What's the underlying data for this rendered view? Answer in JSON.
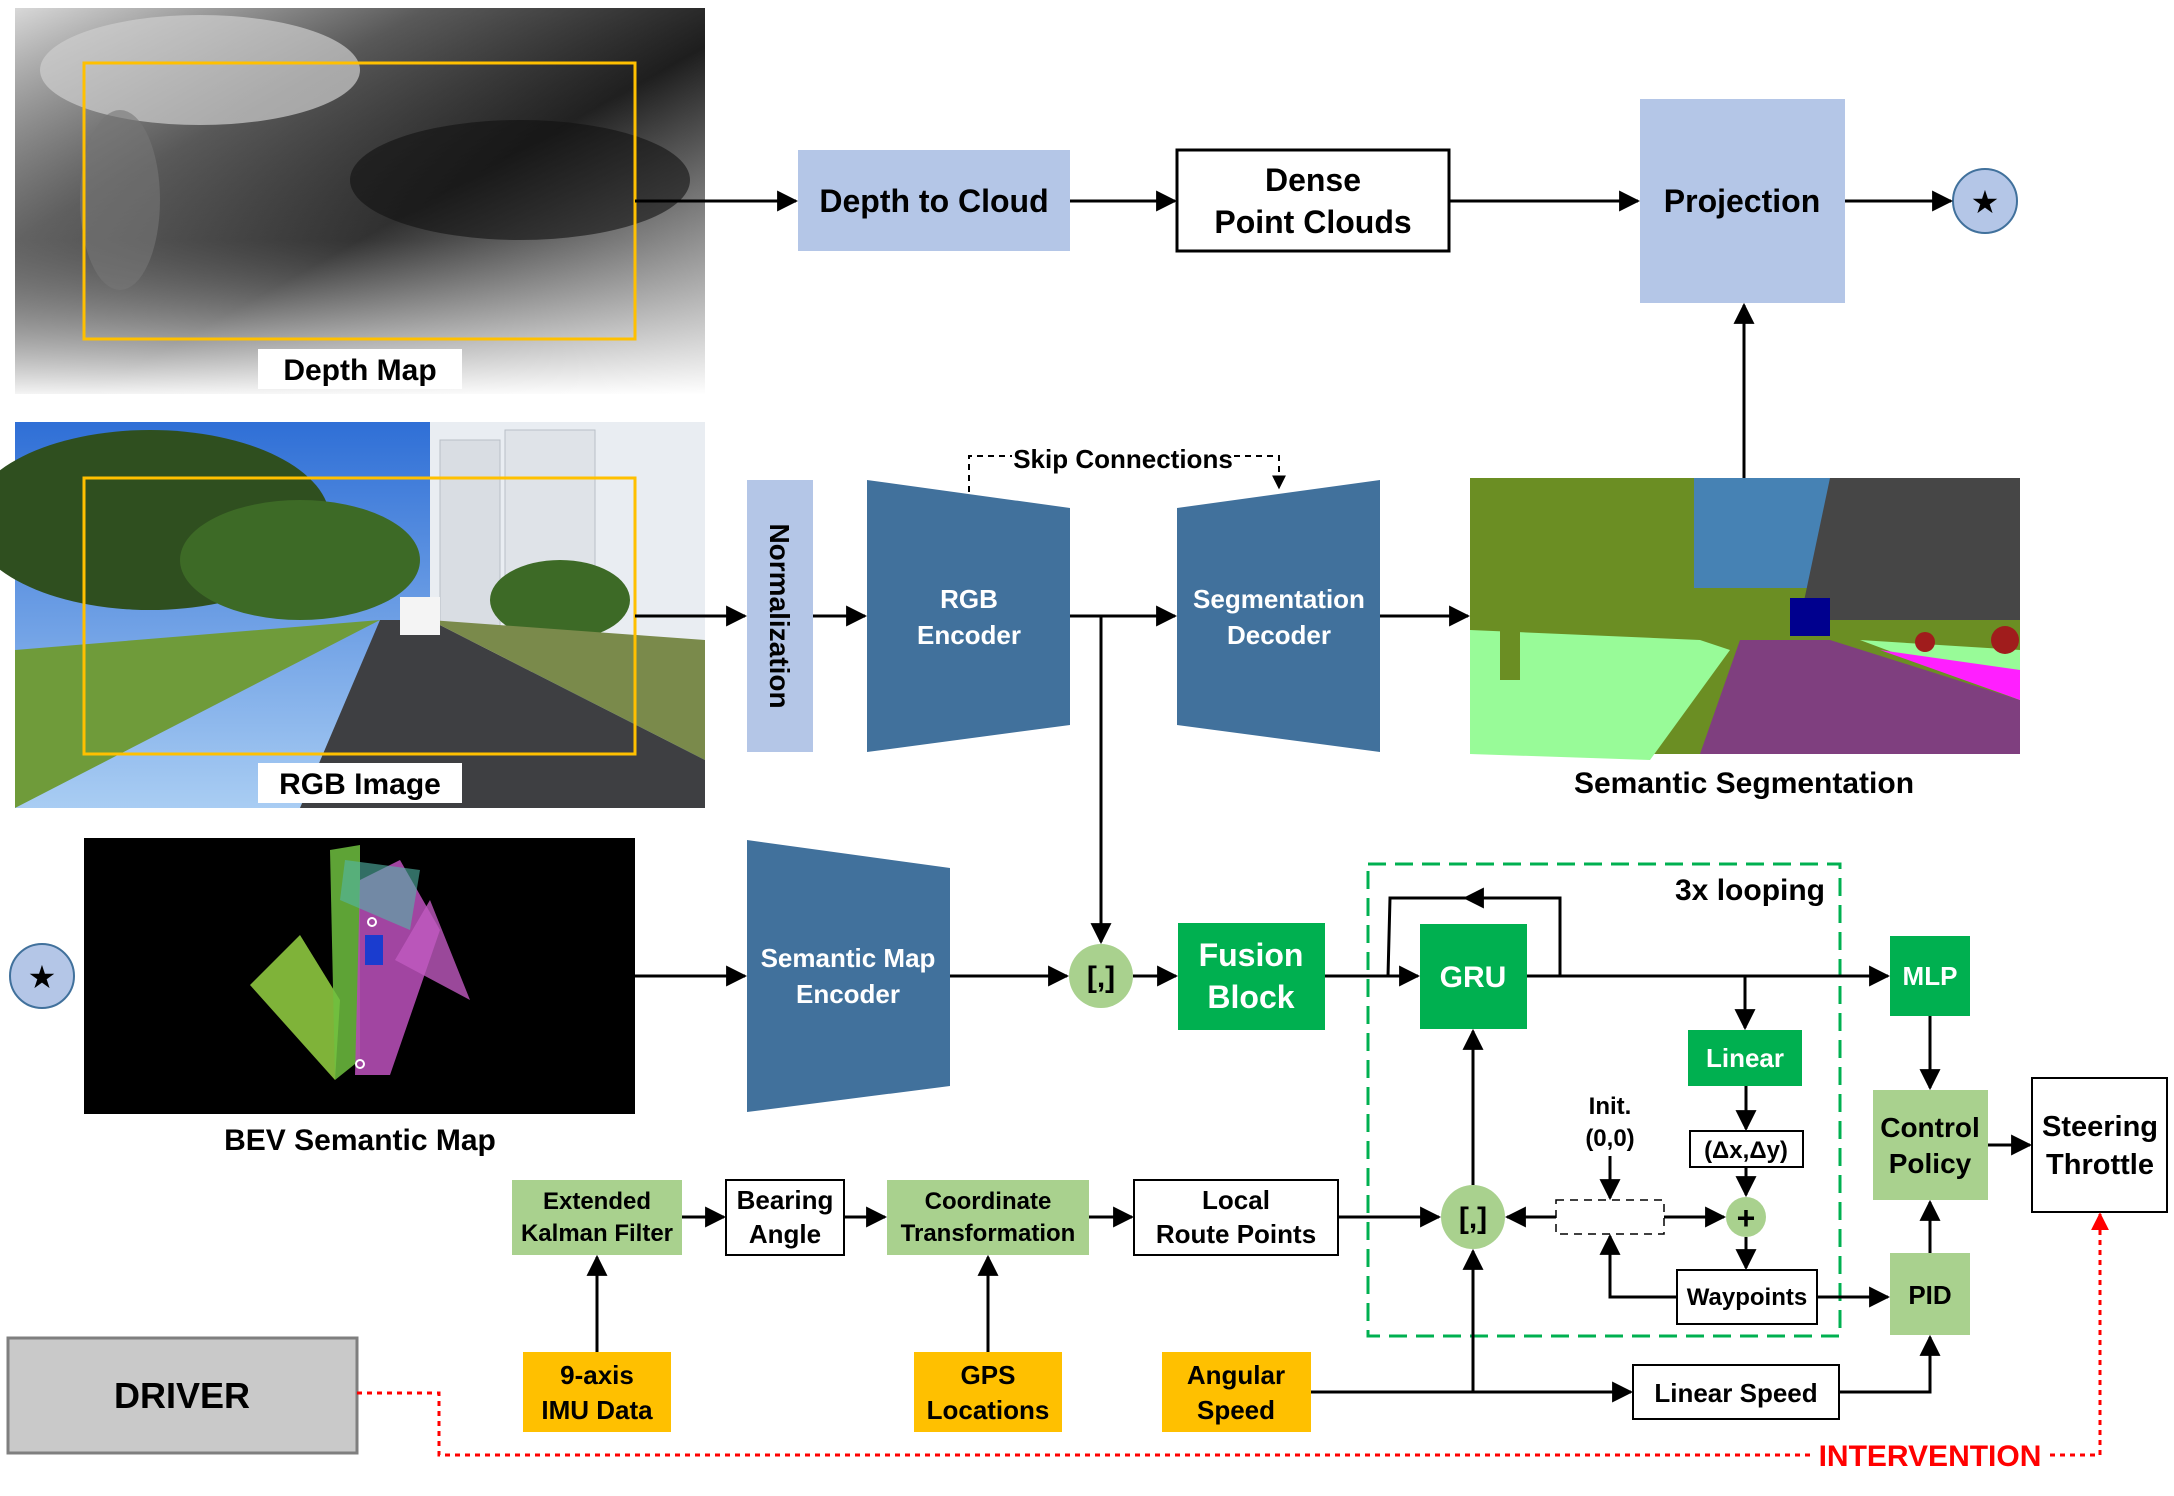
{
  "images": {
    "depth_map": "Depth Map",
    "rgb_image": "RGB Image",
    "bev_map": "BEV Semantic Map",
    "semantic_segmentation": "Semantic Segmentation"
  },
  "blocks": {
    "depth_to_cloud": "Depth to Cloud",
    "dense_point_clouds_1": "Dense",
    "dense_point_clouds_2": "Point Clouds",
    "projection": "Projection",
    "normalization": "Normalization",
    "rgb_encoder_1": "RGB",
    "rgb_encoder_2": "Encoder",
    "skip_connections": "Skip Connections",
    "seg_decoder_1": "Segmentation",
    "seg_decoder_2": "Decoder",
    "semantic_map_encoder_1": "Semantic Map",
    "semantic_map_encoder_2": "Encoder",
    "concat_symbol": "[,]",
    "fusion_block_1": "Fusion",
    "fusion_block_2": "Block",
    "loop_label": "3x looping",
    "gru": "GRU",
    "linear": "Linear",
    "delta": "(Δx,Δy)",
    "init_1": "Init.",
    "init_2": "(0,0)",
    "plus": "+",
    "waypoints": "Waypoints",
    "mlp": "MLP",
    "control_policy_1": "Control",
    "control_policy_2": "Policy",
    "pid": "PID",
    "steering": "Steering",
    "throttle": "Throttle",
    "ekf_1": "Extended",
    "ekf_2": "Kalman Filter",
    "bearing_1": "Bearing",
    "bearing_2": "Angle",
    "coord_1": "Coordinate",
    "coord_2": "Transformation",
    "local_route_1": "Local",
    "local_route_2": "Route Points",
    "imu_1": "9-axis",
    "imu_2": "IMU Data",
    "gps_1": "GPS",
    "gps_2": "Locations",
    "angular_1": "Angular",
    "angular_2": "Speed",
    "linear_speed": "Linear Speed",
    "driver": "DRIVER",
    "intervention": "INTERVENTION",
    "star": "★"
  },
  "colors": {
    "light_blue": "#b4c6e7",
    "dark_blue": "#41719c",
    "dark_green": "#00b050",
    "light_green": "#a9d18e",
    "orange": "#ffc000",
    "grey": "#c9c9c9",
    "red": "#ff0000",
    "yellow_frame": "#ffc000"
  }
}
